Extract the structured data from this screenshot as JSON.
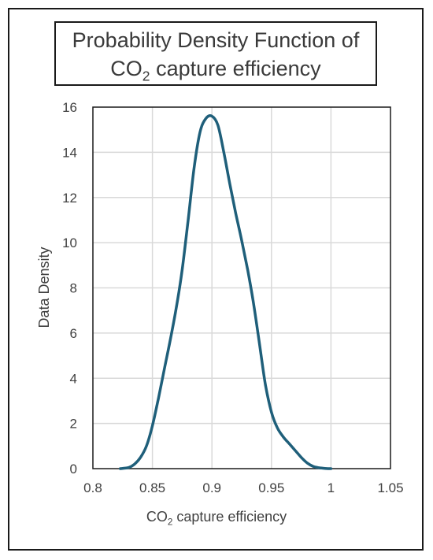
{
  "title": {
    "line1": "Probability Density Function of",
    "line2_pre": "CO",
    "line2_sub": "2",
    "line2_post": " capture efficiency"
  },
  "chart_data": {
    "type": "line",
    "title": "Probability Density Function of CO2 capture efficiency",
    "xlabel": "CO2 capture efficiency",
    "ylabel": "Data Density",
    "xlim": [
      0.8,
      1.05
    ],
    "ylim": [
      0,
      16
    ],
    "xticks": [
      "0.8",
      "0.85",
      "0.9",
      "0.95",
      "1",
      "1.05"
    ],
    "yticks": [
      "0",
      "2",
      "4",
      "6",
      "8",
      "10",
      "12",
      "14",
      "16"
    ],
    "grid": true,
    "line_color": "#1f5f7a",
    "series": [
      {
        "x": [
          0.823,
          0.83,
          0.835,
          0.84,
          0.845,
          0.85,
          0.855,
          0.86,
          0.865,
          0.87,
          0.875,
          0.88,
          0.885,
          0.89,
          0.895,
          0.9,
          0.905,
          0.91,
          0.915,
          0.92,
          0.925,
          0.93,
          0.935,
          0.94,
          0.945,
          0.95,
          0.955,
          0.96,
          0.965,
          0.97,
          0.975,
          0.98,
          0.985,
          0.99,
          0.995,
          1.0
        ],
        "y": [
          0.0,
          0.05,
          0.2,
          0.5,
          1.0,
          1.9,
          3.1,
          4.4,
          5.7,
          7.1,
          8.8,
          11.0,
          13.3,
          14.9,
          15.5,
          15.6,
          15.2,
          14.0,
          12.6,
          11.3,
          10.1,
          8.8,
          7.3,
          5.5,
          3.7,
          2.5,
          1.8,
          1.4,
          1.1,
          0.8,
          0.5,
          0.25,
          0.1,
          0.04,
          0.01,
          0.0
        ]
      }
    ]
  }
}
